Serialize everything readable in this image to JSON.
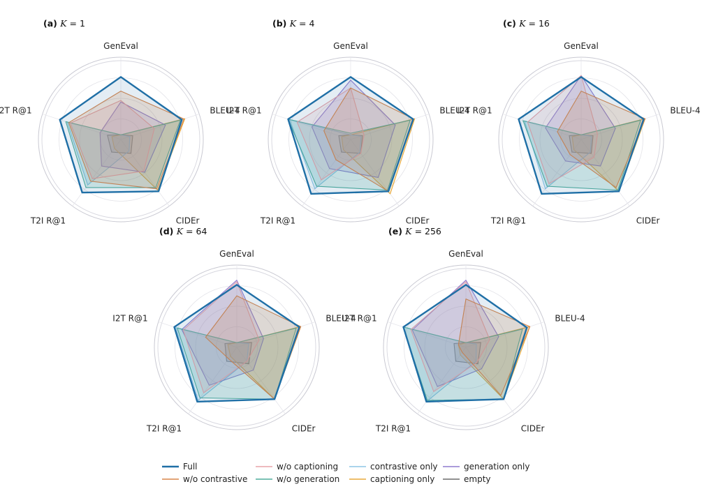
{
  "chart_data": {
    "type": "radar",
    "axes": [
      "GenEval",
      "BLEU-4",
      "CIDEr",
      "T2I R@1",
      "I2T R@1"
    ],
    "rlim": [
      0,
      1
    ],
    "grid": true,
    "legend_position": "bottom",
    "legend": [
      {
        "name": "Full",
        "color": "#1f6fa6"
      },
      {
        "name": "w/o contrastive",
        "color": "#d9864a"
      },
      {
        "name": "w/o captioning",
        "color": "#e8a3a8"
      },
      {
        "name": "w/o generation",
        "color": "#4fae9c"
      },
      {
        "name": "contrastive only",
        "color": "#8dc6e6"
      },
      {
        "name": "captioning only",
        "color": "#e8a93a"
      },
      {
        "name": "generation only",
        "color": "#8f7ccf"
      },
      {
        "name": "empty",
        "color": "#6b6b6b"
      }
    ],
    "panels": [
      {
        "label": "(a)",
        "k_text": "K",
        "k_value": "1",
        "series": [
          {
            "name": "Full",
            "values": [
              0.8,
              0.82,
              0.82,
              0.84,
              0.82
            ]
          },
          {
            "name": "w/o contrastive",
            "values": [
              0.62,
              0.85,
              0.78,
              0.66,
              0.7
            ]
          },
          {
            "name": "w/o captioning",
            "values": [
              0.5,
              0.45,
              0.5,
              0.62,
              0.68
            ]
          },
          {
            "name": "w/o generation",
            "values": [
              0.06,
              0.8,
              0.76,
              0.76,
              0.74
            ]
          },
          {
            "name": "contrastive only",
            "values": [
              0.06,
              0.12,
              0.18,
              0.72,
              0.72
            ]
          },
          {
            "name": "captioning only",
            "values": [
              0.06,
              0.86,
              0.8,
              0.14,
              0.12
            ]
          },
          {
            "name": "generation only",
            "values": [
              0.48,
              0.6,
              0.52,
              0.42,
              0.28
            ]
          },
          {
            "name": "empty",
            "values": [
              0.06,
              0.16,
              0.22,
              0.2,
              0.18
            ]
          }
        ]
      },
      {
        "label": "(b)",
        "k_text": "K",
        "k_value": "4",
        "series": [
          {
            "name": "Full",
            "values": [
              0.8,
              0.84,
              0.82,
              0.86,
              0.84
            ]
          },
          {
            "name": "w/o contrastive",
            "values": [
              0.66,
              0.85,
              0.82,
              0.32,
              0.36
            ]
          },
          {
            "name": "w/o captioning",
            "values": [
              0.66,
              0.18,
              0.22,
              0.64,
              0.72
            ]
          },
          {
            "name": "w/o generation",
            "values": [
              0.08,
              0.8,
              0.8,
              0.74,
              0.84
            ]
          },
          {
            "name": "contrastive only",
            "values": [
              0.06,
              0.14,
              0.2,
              0.78,
              0.82
            ]
          },
          {
            "name": "captioning only",
            "values": [
              0.06,
              0.86,
              0.86,
              0.16,
              0.12
            ]
          },
          {
            "name": "generation only",
            "values": [
              0.76,
              0.6,
              0.6,
              0.46,
              0.52
            ]
          },
          {
            "name": "empty",
            "values": [
              0.06,
              0.16,
              0.22,
              0.2,
              0.16
            ]
          }
        ]
      },
      {
        "label": "(c)",
        "k_text": "K",
        "k_value": "16",
        "series": [
          {
            "name": "Full",
            "values": [
              0.8,
              0.84,
              0.82,
              0.86,
              0.84
            ]
          },
          {
            "name": "w/o contrastive",
            "values": [
              0.62,
              0.86,
              0.76,
              0.24,
              0.32
            ]
          },
          {
            "name": "w/o captioning",
            "values": [
              0.82,
              0.22,
              0.28,
              0.7,
              0.72
            ]
          },
          {
            "name": "w/o generation",
            "values": [
              0.06,
              0.8,
              0.8,
              0.74,
              0.78
            ]
          },
          {
            "name": "contrastive only",
            "values": [
              0.06,
              0.14,
              0.2,
              0.78,
              0.76
            ]
          },
          {
            "name": "captioning only",
            "values": [
              0.06,
              0.86,
              0.82,
              0.16,
              0.12
            ]
          },
          {
            "name": "generation only",
            "values": [
              0.82,
              0.46,
              0.42,
              0.34,
              0.48
            ]
          },
          {
            "name": "empty",
            "values": [
              0.06,
              0.16,
              0.22,
              0.2,
              0.16
            ]
          }
        ]
      },
      {
        "label": "(d)",
        "k_text": "K",
        "k_value": "64",
        "series": [
          {
            "name": "Full",
            "values": [
              0.8,
              0.84,
              0.82,
              0.86,
              0.84
            ]
          },
          {
            "name": "w/o contrastive",
            "values": [
              0.66,
              0.86,
              0.82,
              0.18,
              0.42
            ]
          },
          {
            "name": "w/o captioning",
            "values": [
              0.84,
              0.3,
              0.22,
              0.72,
              0.72
            ]
          },
          {
            "name": "w/o generation",
            "values": [
              0.06,
              0.8,
              0.82,
              0.8,
              0.8
            ]
          },
          {
            "name": "contrastive only",
            "values": [
              0.06,
              0.16,
              0.22,
              0.84,
              0.82
            ]
          },
          {
            "name": "captioning only",
            "values": [
              0.06,
              0.86,
              0.82,
              0.14,
              0.12
            ]
          },
          {
            "name": "generation only",
            "values": [
              0.86,
              0.36,
              0.36,
              0.6,
              0.74
            ]
          },
          {
            "name": "empty",
            "values": [
              0.06,
              0.2,
              0.26,
              0.22,
              0.16
            ]
          }
        ]
      },
      {
        "label": "(e)",
        "k_text": "K",
        "k_value": "256",
        "series": [
          {
            "name": "Full",
            "values": [
              0.8,
              0.82,
              0.82,
              0.86,
              0.84
            ]
          },
          {
            "name": "w/o contrastive",
            "values": [
              0.62,
              0.86,
              0.76,
              0.08,
              0.1
            ]
          },
          {
            "name": "w/o captioning",
            "values": [
              0.84,
              0.32,
              0.24,
              0.7,
              0.74
            ]
          },
          {
            "name": "w/o generation",
            "values": [
              0.06,
              0.76,
              0.82,
              0.84,
              0.84
            ]
          },
          {
            "name": "contrastive only",
            "values": [
              0.06,
              0.14,
              0.22,
              0.86,
              0.84
            ]
          },
          {
            "name": "captioning only",
            "values": [
              0.06,
              0.86,
              0.82,
              0.12,
              0.1
            ]
          },
          {
            "name": "generation only",
            "values": [
              0.86,
              0.44,
              0.34,
              0.62,
              0.72
            ]
          },
          {
            "name": "empty",
            "values": [
              0.06,
              0.2,
              0.26,
              0.22,
              0.16
            ]
          }
        ]
      }
    ]
  }
}
